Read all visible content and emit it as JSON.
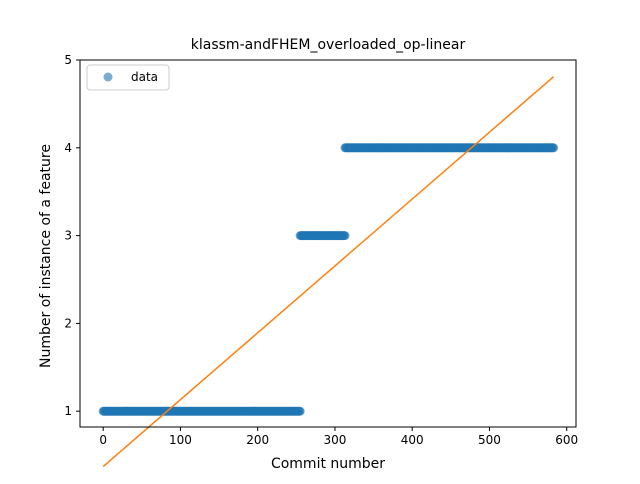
{
  "chart_data": {
    "type": "scatter",
    "title": "klassm-andFHEM_overloaded_op-linear",
    "xlabel": "Commit number",
    "ylabel": "Number of instance of a feature",
    "xlim": [
      -30,
      612
    ],
    "ylim": [
      0.82,
      5.0
    ],
    "xticks": [
      0,
      100,
      200,
      300,
      400,
      500,
      600
    ],
    "yticks": [
      1,
      2,
      3,
      4,
      5
    ],
    "grid": false,
    "legend": {
      "position": "top-left",
      "entries": [
        "data"
      ]
    },
    "colors": {
      "data": "#1f77b4",
      "fit": "#ff7f0e"
    },
    "series": [
      {
        "name": "data",
        "kind": "scatter",
        "segments": [
          {
            "x_start": 0,
            "x_end": 255,
            "y": 1
          },
          {
            "x_start": 255,
            "x_end": 313,
            "y": 3
          },
          {
            "x_start": 313,
            "x_end": 583,
            "y": 4
          }
        ]
      },
      {
        "kind": "line",
        "x": [
          0,
          583
        ],
        "y": [
          0.37,
          4.81
        ]
      }
    ]
  }
}
